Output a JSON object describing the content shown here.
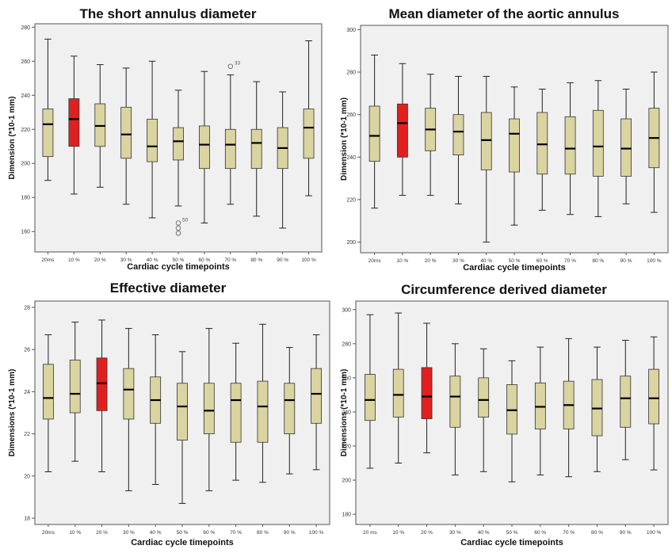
{
  "chart_data": [
    {
      "type": "boxplot",
      "title": "The short annulus diameter",
      "xlabel": "Cardiac cycle timepoints",
      "ylabel": "Dimension (*10-1 mm)",
      "categories": [
        "20ms",
        "10 %",
        "20 %",
        "30 %",
        "40 %",
        "50 %",
        "60 %",
        "70 %",
        "80 %",
        "90 %",
        "100 %"
      ],
      "ylim": [
        148,
        282
      ],
      "yticks": [
        160,
        180,
        200,
        220,
        240,
        260,
        280
      ],
      "highlight_index": 1,
      "box_color": "#d9d4a0",
      "highlight_color": "#e02020",
      "boxes": [
        {
          "min": 190,
          "q1": 204,
          "median": 223,
          "q3": 232,
          "max": 273
        },
        {
          "min": 182,
          "q1": 210,
          "median": 226,
          "q3": 238,
          "max": 263
        },
        {
          "min": 186,
          "q1": 210,
          "median": 222,
          "q3": 235,
          "max": 258
        },
        {
          "min": 176,
          "q1": 203,
          "median": 217,
          "q3": 233,
          "max": 256
        },
        {
          "min": 168,
          "q1": 201,
          "median": 210,
          "q3": 226,
          "max": 260
        },
        {
          "min": 175,
          "q1": 202,
          "median": 213,
          "q3": 221,
          "max": 243
        },
        {
          "min": 165,
          "q1": 197,
          "median": 211,
          "q3": 222,
          "max": 254
        },
        {
          "min": 176,
          "q1": 197,
          "median": 211,
          "q3": 220,
          "max": 252
        },
        {
          "min": 169,
          "q1": 197,
          "median": 212,
          "q3": 220,
          "max": 248
        },
        {
          "min": 162,
          "q1": 197,
          "median": 209,
          "q3": 221,
          "max": 242
        },
        {
          "min": 181,
          "q1": 203,
          "median": 221,
          "q3": 232,
          "max": 272
        }
      ],
      "outliers": [
        {
          "index": 5,
          "value": 165,
          "label": "50"
        },
        {
          "index": 5,
          "value": 162,
          "label": ""
        },
        {
          "index": 5,
          "value": 159,
          "label": ""
        },
        {
          "index": 7,
          "value": 257,
          "label": "33"
        }
      ]
    },
    {
      "type": "boxplot",
      "title": "Mean diameter of the aortic annulus",
      "xlabel": "Cardiac cycle timepoints",
      "ylabel": "Dimension (*10-1 mm)",
      "categories": [
        "20ms",
        "10 %",
        "20 %",
        "30 %",
        "40 %",
        "50 %",
        "60 %",
        "70 %",
        "80 %",
        "90 %",
        "100 %"
      ],
      "ylim": [
        195,
        302
      ],
      "yticks": [
        200,
        220,
        240,
        260,
        280,
        300
      ],
      "highlight_index": 1,
      "box_color": "#d9d4a0",
      "highlight_color": "#e02020",
      "boxes": [
        {
          "min": 216,
          "q1": 238,
          "median": 250,
          "q3": 264,
          "max": 288
        },
        {
          "min": 222,
          "q1": 240,
          "median": 256,
          "q3": 265,
          "max": 284
        },
        {
          "min": 222,
          "q1": 243,
          "median": 253,
          "q3": 263,
          "max": 279
        },
        {
          "min": 218,
          "q1": 241,
          "median": 252,
          "q3": 260,
          "max": 278
        },
        {
          "min": 200,
          "q1": 234,
          "median": 248,
          "q3": 261,
          "max": 278
        },
        {
          "min": 208,
          "q1": 233,
          "median": 251,
          "q3": 258,
          "max": 273
        },
        {
          "min": 215,
          "q1": 232,
          "median": 246,
          "q3": 261,
          "max": 272
        },
        {
          "min": 213,
          "q1": 232,
          "median": 244,
          "q3": 259,
          "max": 275
        },
        {
          "min": 212,
          "q1": 231,
          "median": 245,
          "q3": 262,
          "max": 276
        },
        {
          "min": 218,
          "q1": 231,
          "median": 244,
          "q3": 258,
          "max": 272
        },
        {
          "min": 214,
          "q1": 235,
          "median": 249,
          "q3": 263,
          "max": 280
        }
      ],
      "outliers": []
    },
    {
      "type": "boxplot",
      "title": "Effective diameter",
      "xlabel": "Cardiac cycle timepoints",
      "ylabel": "Dimensions (*10-1 mm)",
      "categories": [
        "20ms",
        "10 %",
        "20 %",
        "30 %",
        "40 %",
        "50 %",
        "60 %",
        "70 %",
        "80 %",
        "90 %",
        "100 %"
      ],
      "ylim": [
        17.7,
        28.3
      ],
      "yticks": [
        18,
        20,
        22,
        24,
        26,
        28
      ],
      "highlight_index": 2,
      "box_color": "#d9d4a0",
      "highlight_color": "#e02020",
      "boxes": [
        {
          "min": 20.2,
          "q1": 22.7,
          "median": 23.7,
          "q3": 25.3,
          "max": 26.7
        },
        {
          "min": 20.7,
          "q1": 23.0,
          "median": 23.9,
          "q3": 25.5,
          "max": 27.3
        },
        {
          "min": 20.2,
          "q1": 23.1,
          "median": 24.4,
          "q3": 25.6,
          "max": 27.4
        },
        {
          "min": 19.3,
          "q1": 22.7,
          "median": 24.1,
          "q3": 25.1,
          "max": 27.0
        },
        {
          "min": 19.6,
          "q1": 22.5,
          "median": 23.6,
          "q3": 24.7,
          "max": 26.7
        },
        {
          "min": 18.7,
          "q1": 21.7,
          "median": 23.3,
          "q3": 24.4,
          "max": 25.9
        },
        {
          "min": 19.3,
          "q1": 22.0,
          "median": 23.1,
          "q3": 24.4,
          "max": 27.0
        },
        {
          "min": 19.8,
          "q1": 21.6,
          "median": 23.6,
          "q3": 24.4,
          "max": 26.3
        },
        {
          "min": 19.7,
          "q1": 21.6,
          "median": 23.3,
          "q3": 24.5,
          "max": 27.2
        },
        {
          "min": 20.1,
          "q1": 22.0,
          "median": 23.6,
          "q3": 24.4,
          "max": 26.1
        },
        {
          "min": 20.3,
          "q1": 22.5,
          "median": 23.9,
          "q3": 25.1,
          "max": 26.7
        }
      ],
      "outliers": []
    },
    {
      "type": "boxplot",
      "title": "Circumference derived diameter",
      "xlabel": "Cardiac cycle timepoints",
      "ylabel": "Dimensions (*10-1 mm)",
      "categories": [
        "20 ms",
        "10 %",
        "20 %",
        "30 %",
        "40 %",
        "50 %",
        "60 %",
        "70 %",
        "80 %",
        "90 %",
        "100 %"
      ],
      "ylim": [
        174,
        305
      ],
      "yticks": [
        180,
        200,
        220,
        240,
        260,
        280,
        300
      ],
      "highlight_index": 2,
      "box_color": "#d9d4a0",
      "highlight_color": "#e02020",
      "boxes": [
        {
          "min": 207,
          "q1": 235,
          "median": 247,
          "q3": 262,
          "max": 297
        },
        {
          "min": 210,
          "q1": 237,
          "median": 250,
          "q3": 265,
          "max": 298
        },
        {
          "min": 216,
          "q1": 236,
          "median": 249,
          "q3": 266,
          "max": 292
        },
        {
          "min": 203,
          "q1": 231,
          "median": 249,
          "q3": 261,
          "max": 280
        },
        {
          "min": 205,
          "q1": 237,
          "median": 247,
          "q3": 260,
          "max": 277
        },
        {
          "min": 199,
          "q1": 227,
          "median": 241,
          "q3": 256,
          "max": 270
        },
        {
          "min": 203,
          "q1": 230,
          "median": 243,
          "q3": 257,
          "max": 278
        },
        {
          "min": 202,
          "q1": 230,
          "median": 244,
          "q3": 258,
          "max": 283
        },
        {
          "min": 205,
          "q1": 226,
          "median": 242,
          "q3": 259,
          "max": 278
        },
        {
          "min": 212,
          "q1": 231,
          "median": 248,
          "q3": 261,
          "max": 282
        },
        {
          "min": 206,
          "q1": 233,
          "median": 248,
          "q3": 265,
          "max": 284
        }
      ],
      "outliers": []
    }
  ]
}
